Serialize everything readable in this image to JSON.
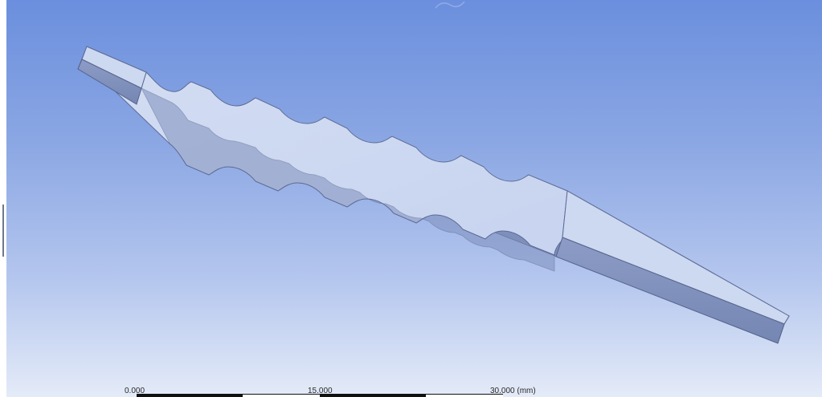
{
  "viewport": {
    "background_top": "#6b8fde",
    "background_bottom": "#e4ebf8"
  },
  "model": {
    "part_color_top": "#c9d6f2",
    "part_color_side": "#8e9fc9",
    "notch_count": 6
  },
  "scale": {
    "label_start": "0.000",
    "label_mid": "15.000",
    "label_end": "30.000 (mm)"
  }
}
